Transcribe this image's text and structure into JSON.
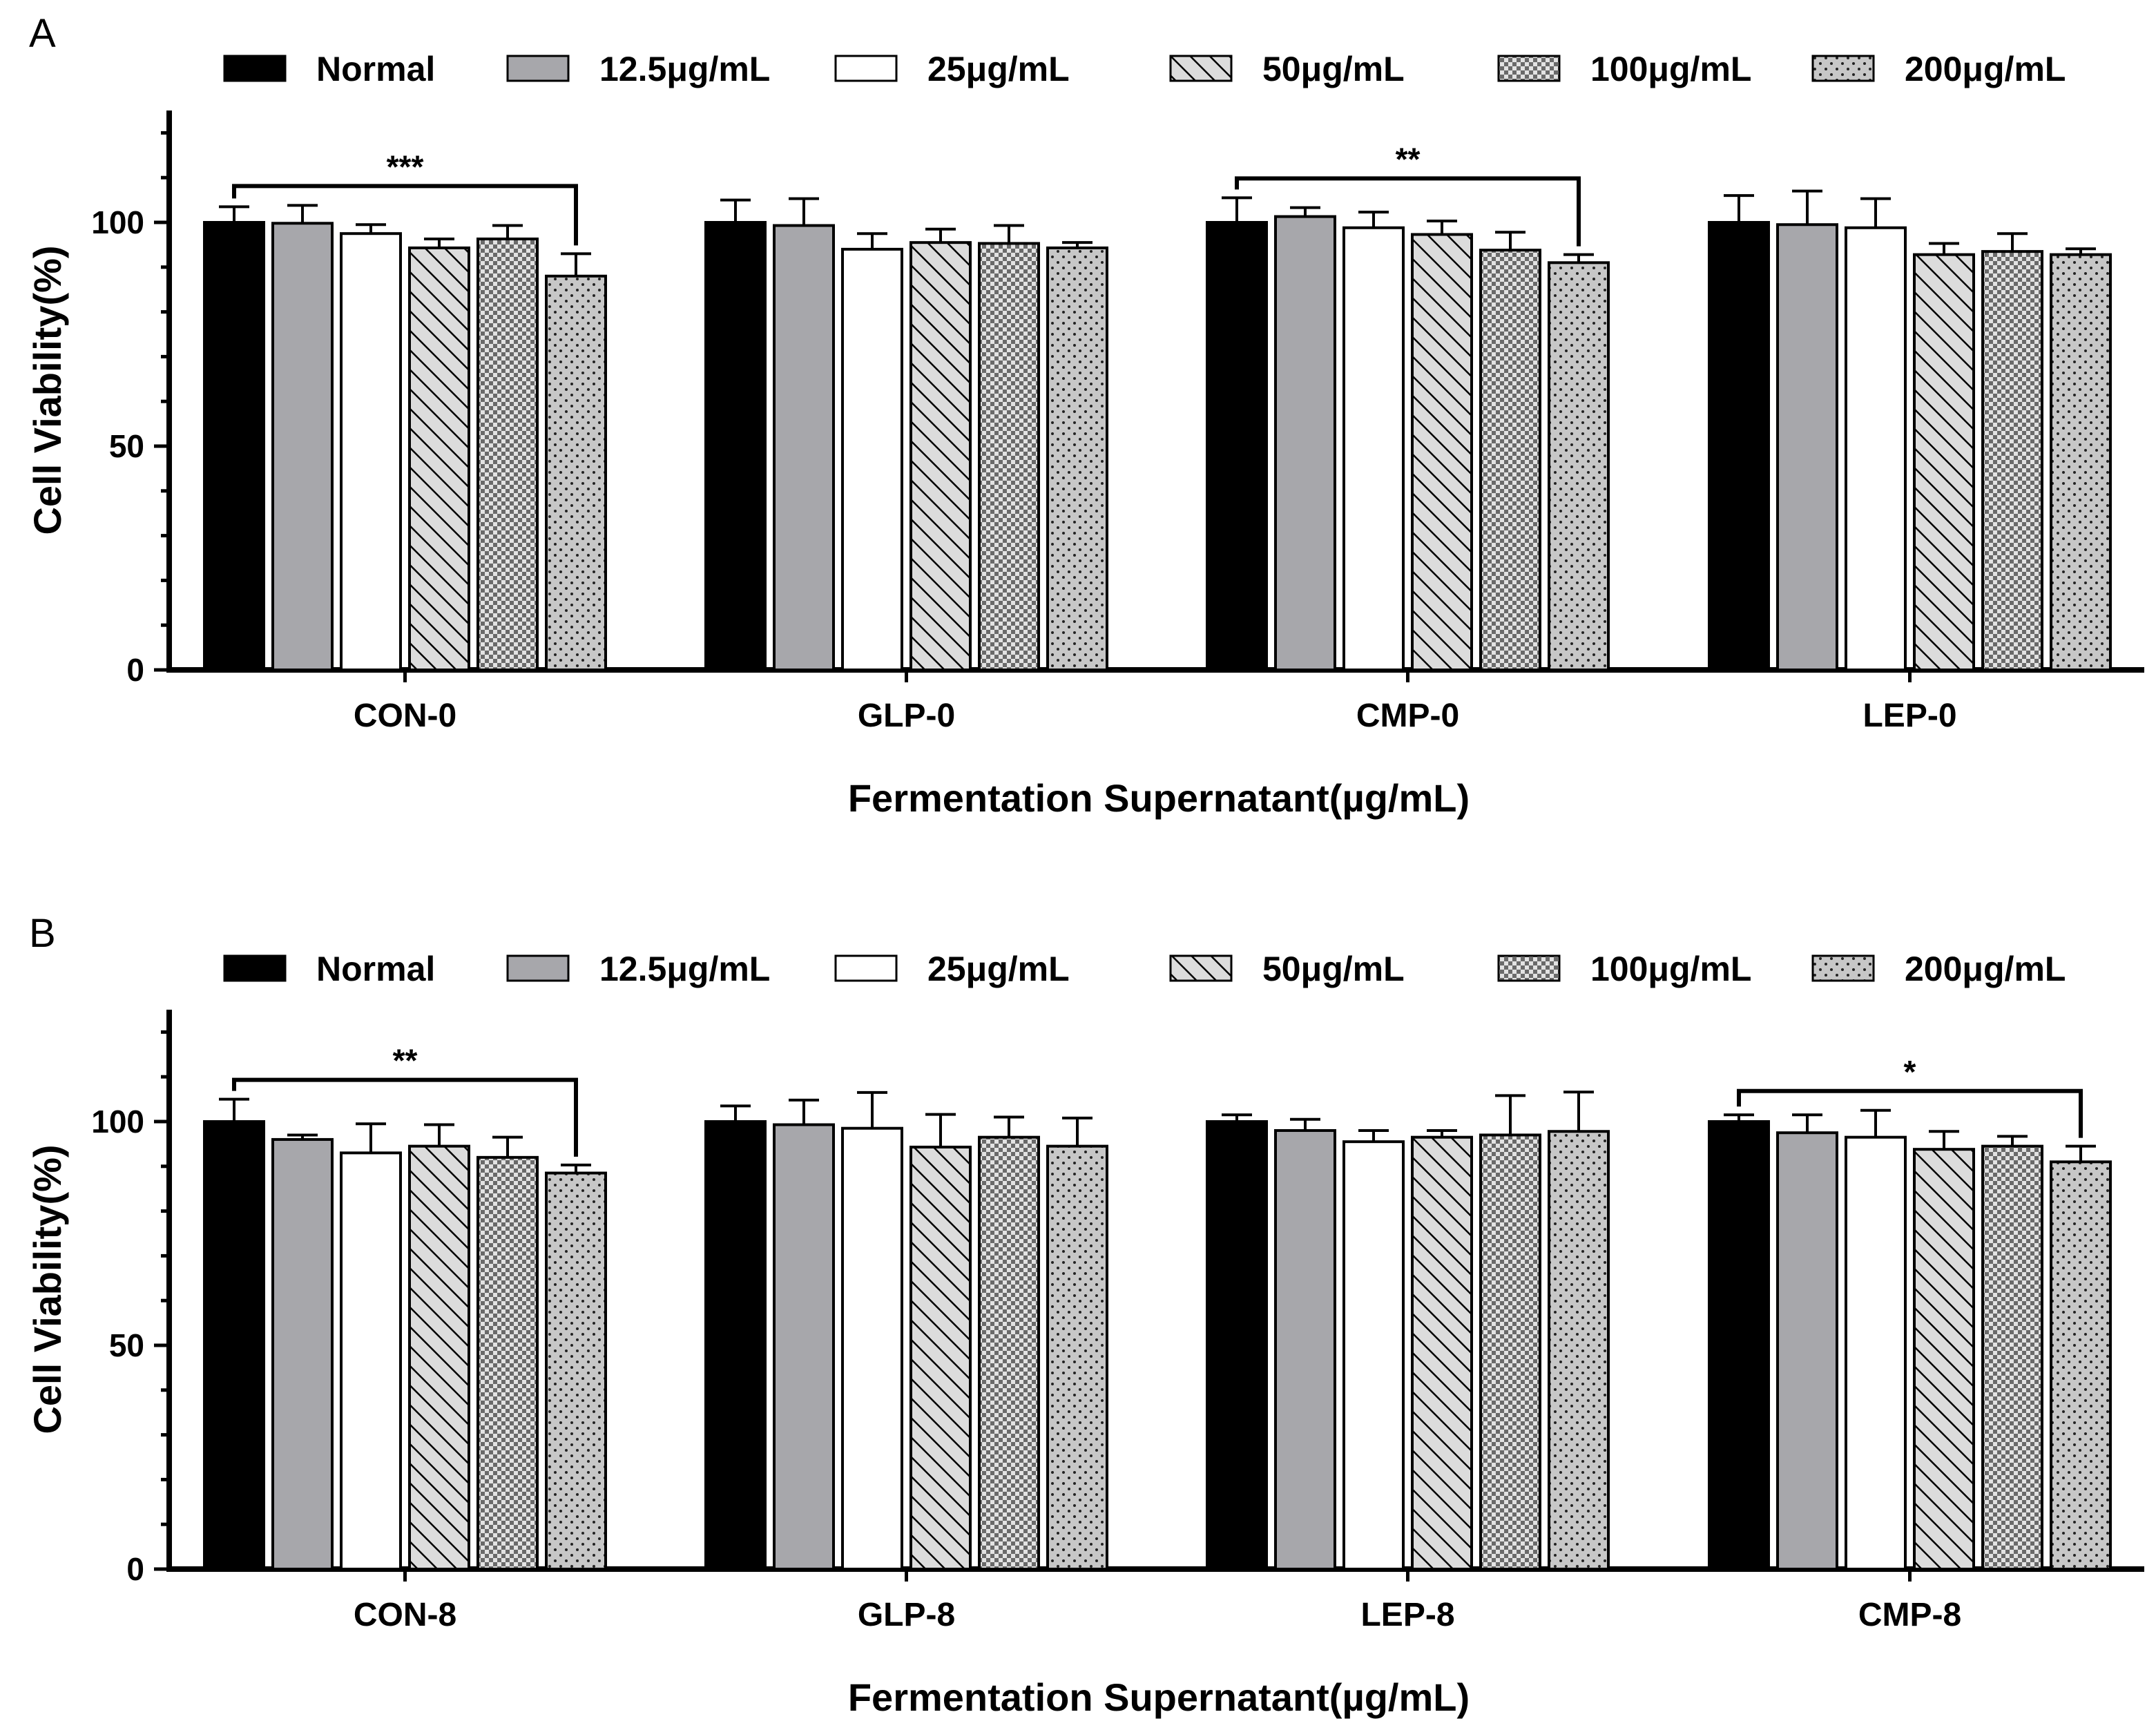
{
  "chart_data": [
    {
      "type": "bar",
      "panel": "A",
      "ylabel": "Cell Viability(%)",
      "xlabel": "Fermentation Supernatant(µg/mL)",
      "ylim": [
        0,
        125
      ],
      "yticks": [
        0,
        50,
        100
      ],
      "categories": [
        "CON-0",
        "GLP-0",
        "CMP-0",
        "LEP-0"
      ],
      "series": [
        {
          "name": "Normal",
          "values": [
            100,
            100,
            100,
            100
          ],
          "errors": [
            3.5,
            5,
            5.5,
            6
          ]
        },
        {
          "name": "12.5μg/mL",
          "values": [
            99.8,
            99.3,
            101.3,
            99.5
          ],
          "errors": [
            4,
            6,
            2,
            7.5
          ]
        },
        {
          "name": "25μg/mL",
          "values": [
            97.5,
            94,
            98.8,
            98.8
          ],
          "errors": [
            2,
            3.5,
            3.5,
            6.5
          ]
        },
        {
          "name": "50μg/mL",
          "values": [
            94.3,
            95.5,
            97.3,
            92.8
          ],
          "errors": [
            2,
            3,
            3,
            2.5
          ]
        },
        {
          "name": "100μg/mL",
          "values": [
            96.3,
            95.3,
            93.8,
            93.5
          ],
          "errors": [
            3,
            4,
            4,
            4
          ]
        },
        {
          "name": "200μg/mL",
          "values": [
            88,
            94.3,
            91,
            92.8
          ],
          "errors": [
            5,
            1.2,
            1.8,
            1.3
          ]
        }
      ],
      "significance": [
        {
          "category": "CON-0",
          "from": "Normal",
          "to": "200μg/mL",
          "label": "***"
        },
        {
          "category": "CMP-0",
          "from": "Normal",
          "to": "200μg/mL",
          "label": "**"
        }
      ]
    },
    {
      "type": "bar",
      "panel": "B",
      "ylabel": "Cell Viability(%)",
      "xlabel": "Fermentation Supernatant(µg/mL)",
      "ylim": [
        0,
        125
      ],
      "yticks": [
        0,
        50,
        100
      ],
      "categories": [
        "CON-8",
        "GLP-8",
        "LEP-8",
        "CMP-8"
      ],
      "series": [
        {
          "name": "Normal",
          "values": [
            100,
            100,
            100,
            100
          ],
          "errors": [
            5,
            3.5,
            1.5,
            1.5
          ]
        },
        {
          "name": "12.5μg/mL",
          "values": [
            96,
            99.3,
            98,
            97.5
          ],
          "errors": [
            1,
            5.5,
            2.5,
            4
          ]
        },
        {
          "name": "25μg/mL",
          "values": [
            93,
            98.5,
            95.5,
            96.5
          ],
          "errors": [
            6.5,
            8,
            2.5,
            6
          ]
        },
        {
          "name": "50μg/mL",
          "values": [
            94.5,
            94.3,
            96.5,
            93.8
          ],
          "errors": [
            4.8,
            7.3,
            1.5,
            4
          ]
        },
        {
          "name": "100μg/mL",
          "values": [
            92,
            96.5,
            97,
            94.5
          ],
          "errors": [
            4.5,
            4.5,
            8.8,
            2.2
          ]
        },
        {
          "name": "200μg/mL",
          "values": [
            88.5,
            94.5,
            97.8,
            91
          ],
          "errors": [
            1.8,
            6.3,
            8.8,
            3.5
          ]
        }
      ],
      "significance": [
        {
          "category": "CON-8",
          "from": "Normal",
          "to": "200μg/mL",
          "label": "**"
        },
        {
          "category": "CMP-8",
          "from": "Normal",
          "to": "200μg/mL",
          "label": "*"
        }
      ]
    }
  ],
  "colors": {
    "normal": "#000000",
    "conc_12_5": "#a7a7ab",
    "conc_25": "#ffffff",
    "hatch_fill": "#d3d3d3",
    "stroke": "#000000"
  }
}
